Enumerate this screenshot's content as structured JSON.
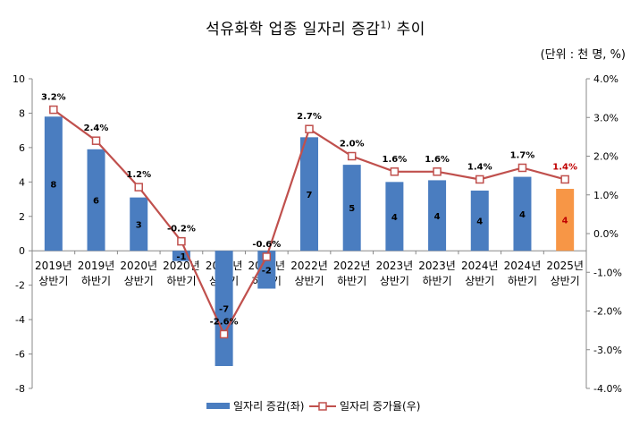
{
  "chart_data": {
    "type": "bar+line",
    "title": "석유화학 업종 일자리 증감",
    "title_sup": "1)",
    "title_suffix": " 추이",
    "unit_note": "(단위 : 천 명, %)",
    "categories": [
      [
        "2019년",
        "상반기"
      ],
      [
        "2019년",
        "하반기"
      ],
      [
        "2020년",
        "상반기"
      ],
      [
        "2020년",
        "하반기"
      ],
      [
        "2021년",
        "상반기"
      ],
      [
        "2021년",
        "하반기"
      ],
      [
        "2022년",
        "상반기"
      ],
      [
        "2022년",
        "하반기"
      ],
      [
        "2023년",
        "상반기"
      ],
      [
        "2023년",
        "하반기"
      ],
      [
        "2024년",
        "상반기"
      ],
      [
        "2024년",
        "하반기"
      ],
      [
        "2025년",
        "상반기"
      ]
    ],
    "series": [
      {
        "name": "일자리 증감(좌)",
        "type": "bar",
        "axis": "left",
        "values": [
          7.8,
          5.9,
          3.1,
          -0.6,
          -6.7,
          -2.2,
          6.6,
          5.0,
          4.0,
          4.1,
          3.5,
          4.3,
          3.6
        ],
        "labels": [
          "8",
          "6",
          "3",
          "-1",
          "-7",
          "-2",
          "7",
          "5",
          "4",
          "4",
          "4",
          "4",
          "4"
        ],
        "color": "#4a7dc0",
        "highlight_color": "#f79646"
      },
      {
        "name": "일자리 증가율(우)",
        "type": "line",
        "axis": "right",
        "values": [
          3.2,
          2.4,
          1.2,
          -0.2,
          -2.6,
          -0.6,
          2.7,
          2.0,
          1.6,
          1.6,
          1.4,
          1.7,
          1.4
        ],
        "labels": [
          "3.2%",
          "2.4%",
          "1.2%",
          "-0.2%",
          "-2.6%",
          "-0.6%",
          "2.7%",
          "2.0%",
          "1.6%",
          "1.6%",
          "1.4%",
          "1.7%",
          "1.4%"
        ],
        "color": "#c0504d"
      }
    ],
    "left_axis": {
      "min": -8,
      "max": 10,
      "ticks": [
        "10",
        "8",
        "6",
        "4",
        "2",
        "0",
        "-2",
        "-4",
        "-6",
        "-8"
      ]
    },
    "right_axis": {
      "min": -4,
      "max": 4,
      "ticks": [
        "4.0%",
        "3.0%",
        "2.0%",
        "1.0%",
        "0.0%",
        "-1.0%",
        "-2.0%",
        "-3.0%",
        "-4.0%"
      ]
    },
    "legend": {
      "placement": "bottom",
      "bar_label": "일자리 증감(좌)",
      "line_label": "일자리 증가율(우)"
    }
  }
}
